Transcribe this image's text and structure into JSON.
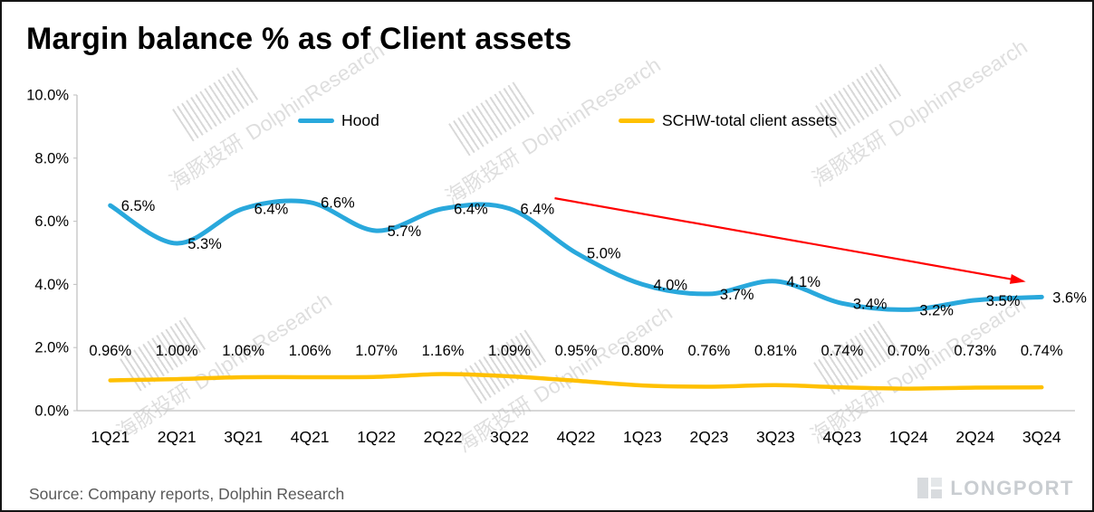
{
  "title": "Margin balance % as of Client assets",
  "source": "Source: Company reports, Dolphin Research",
  "watermark": {
    "cn": "海豚投研",
    "en": "DolphinResearch"
  },
  "logo": {
    "text": "LONGPORT"
  },
  "chart_data": {
    "type": "line",
    "title": "Margin balance % as of Client assets",
    "categories": [
      "1Q21",
      "2Q21",
      "3Q21",
      "4Q21",
      "1Q22",
      "2Q22",
      "3Q22",
      "4Q22",
      "1Q23",
      "2Q23",
      "3Q23",
      "4Q23",
      "1Q24",
      "2Q24",
      "3Q24"
    ],
    "series": [
      {
        "name": "Hood",
        "color": "#29A8DC",
        "values": [
          6.5,
          5.3,
          6.4,
          6.6,
          5.7,
          6.4,
          6.4,
          5.0,
          4.0,
          3.7,
          4.1,
          3.4,
          3.2,
          3.5,
          3.6
        ],
        "labels": [
          "6.5%",
          "5.3%",
          "6.4%",
          "6.6%",
          "5.7%",
          "6.4%",
          "6.4%",
          "5.0%",
          "4.0%",
          "3.7%",
          "4.1%",
          "3.4%",
          "3.2%",
          "3.5%",
          "3.6%"
        ]
      },
      {
        "name": "SCHW-total client assets",
        "color": "#FFC000",
        "values": [
          0.96,
          1.0,
          1.06,
          1.06,
          1.07,
          1.16,
          1.09,
          0.95,
          0.8,
          0.76,
          0.81,
          0.74,
          0.7,
          0.73,
          0.74
        ],
        "labels": [
          "0.96%",
          "1.00%",
          "1.06%",
          "1.06%",
          "1.07%",
          "1.16%",
          "1.09%",
          "0.95%",
          "0.80%",
          "0.76%",
          "0.81%",
          "0.74%",
          "0.70%",
          "0.73%",
          "0.74%"
        ]
      }
    ],
    "xlabel": "",
    "ylabel": "",
    "ylim": [
      0,
      10
    ],
    "y_ticks": [
      "0.0%",
      "2.0%",
      "4.0%",
      "6.0%",
      "8.0%",
      "10.0%"
    ],
    "grid": false,
    "legend_position": "top-inside",
    "annotation": {
      "type": "trend-arrow",
      "color": "#FF0000",
      "from": {
        "x_index": 6.68,
        "value": 6.73
      },
      "to": {
        "x_index": 13.72,
        "value": 4.1
      }
    }
  }
}
